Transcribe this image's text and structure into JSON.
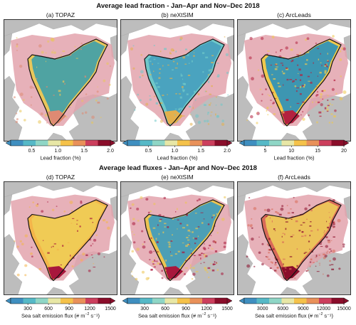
{
  "colors": {
    "land": "#bdbdbd",
    "ocean": "#ffffff",
    "ice_mask": "#e3a3ad",
    "boundary": "#111111"
  },
  "colormap": [
    "#3f8fc0",
    "#56b9c7",
    "#8fd6c6",
    "#e8e7a6",
    "#f5c24a",
    "#e9915a",
    "#cc3f5d",
    "#8a0d2a"
  ],
  "sections": [
    {
      "title": "Average lead fraction - Jan–Apr and Nov–Dec 2018",
      "panels": [
        {
          "label": "(a) TOPAZ",
          "fill": "#4fa3a2",
          "rim": "#e9c65a",
          "edge": "#de8a73",
          "texture": 0.1
        },
        {
          "label": "(b) neXtSIM",
          "fill": "#4aa3bf",
          "rim": "#6fc8c9",
          "edge": "#e3b04d",
          "texture": 0.45
        },
        {
          "label": "(c) ArcLeads",
          "fill": "#3d96b1",
          "rim": "#f0c94d",
          "edge": "#b3213f",
          "texture": 0.55
        }
      ],
      "colorbars": [
        {
          "ticks": [
            "0.5",
            "1.0",
            "1.5",
            "2.0"
          ],
          "min": 0.1,
          "max": 2.0,
          "values": [
            0.5,
            1.0,
            1.5,
            2.0
          ],
          "label": "Lead fraction (%)",
          "sup": "",
          "label_end": ""
        },
        {
          "ticks": [
            "0.5",
            "1.0",
            "1.5",
            "2.0"
          ],
          "min": 0.1,
          "max": 2.0,
          "values": [
            0.5,
            1.0,
            1.5,
            2.0
          ],
          "label": "Lead fraction (%)",
          "sup": "",
          "label_end": ""
        },
        {
          "ticks": [
            "5",
            "10",
            "15",
            "20"
          ],
          "min": 1,
          "max": 20,
          "values": [
            5,
            10,
            15,
            20
          ],
          "label": "Lead fraction (%)",
          "sup": "",
          "label_end": ""
        }
      ]
    },
    {
      "title": "Average lead fluxes - Jan–Apr and Nov–Dec 2018",
      "panels": [
        {
          "label": "(d) TOPAZ",
          "fill": "#f0cb55",
          "rim": "#f4b54a",
          "edge": "#a8173c",
          "texture": 0.12
        },
        {
          "label": "(e) neXtSIM",
          "fill": "#4c9fb6",
          "rim": "#ecc451",
          "edge": "#a8173c",
          "texture": 0.55
        },
        {
          "label": "(f) ArcLeads",
          "fill": "#ecc35a",
          "rim": "#d96a58",
          "edge": "#8a0d2a",
          "texture": 0.55
        }
      ],
      "colorbars": [
        {
          "ticks": [
            "300",
            "600",
            "900",
            "1200",
            "1500"
          ],
          "min": 50,
          "max": 1500,
          "values": [
            300,
            600,
            900,
            1200,
            1500
          ],
          "label": "Sea salt emission flux (# m",
          "sup": "−2",
          "label_end": " s⁻¹)"
        },
        {
          "ticks": [
            "300",
            "600",
            "900",
            "1200",
            "1500"
          ],
          "min": 50,
          "max": 1500,
          "values": [
            300,
            600,
            900,
            1200,
            1500
          ],
          "label": "Sea salt emission flux (# m",
          "sup": "−2",
          "label_end": " s⁻¹)"
        },
        {
          "ticks": [
            "3000",
            "6000",
            "9000",
            "12000",
            "15000"
          ],
          "min": 300,
          "max": 15000,
          "values": [
            3000,
            6000,
            9000,
            12000,
            15000
          ],
          "label": "Sea salt emission flux (# m",
          "sup": "−2",
          "label_end": " s⁻¹)"
        }
      ]
    }
  ],
  "chart_data": [
    {
      "type": "heatmap",
      "title": "(a) TOPAZ",
      "colorbar_label": "Lead fraction (%)",
      "colorbar_range": [
        0.1,
        2.0
      ],
      "colorbar_ticks": [
        0.5,
        1.0,
        1.5,
        2.0
      ],
      "extend": "both"
    },
    {
      "type": "heatmap",
      "title": "(b) neXtSIM",
      "colorbar_label": "Lead fraction (%)",
      "colorbar_range": [
        0.1,
        2.0
      ],
      "colorbar_ticks": [
        0.5,
        1.0,
        1.5,
        2.0
      ],
      "extend": "both"
    },
    {
      "type": "heatmap",
      "title": "(c) ArcLeads",
      "colorbar_label": "Lead fraction (%)",
      "colorbar_range": [
        1,
        20
      ],
      "colorbar_ticks": [
        5,
        10,
        15,
        20
      ],
      "extend": "both"
    },
    {
      "type": "heatmap",
      "title": "(d) TOPAZ",
      "colorbar_label": "Sea salt emission flux (# m−2 s−1)",
      "colorbar_range": [
        50,
        1500
      ],
      "colorbar_ticks": [
        300,
        600,
        900,
        1200,
        1500
      ],
      "extend": "both"
    },
    {
      "type": "heatmap",
      "title": "(e) neXtSIM",
      "colorbar_label": "Sea salt emission flux (# m−2 s−1)",
      "colorbar_range": [
        50,
        1500
      ],
      "colorbar_ticks": [
        300,
        600,
        900,
        1200,
        1500
      ],
      "extend": "both"
    },
    {
      "type": "heatmap",
      "title": "(f) ArcLeads",
      "colorbar_label": "Sea salt emission flux (# m−2 s−1)",
      "colorbar_range": [
        300,
        15000
      ],
      "colorbar_ticks": [
        3000,
        6000,
        9000,
        12000,
        15000
      ],
      "extend": "both"
    }
  ]
}
